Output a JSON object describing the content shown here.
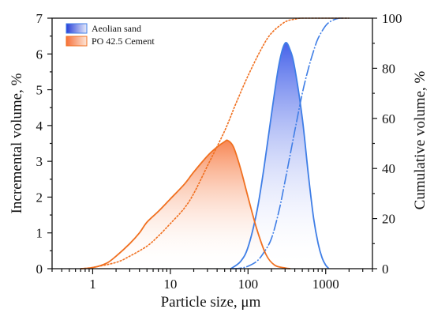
{
  "chart_data": {
    "type": "area",
    "x_scale": "log",
    "xlabel": "Particle size, μm",
    "ylabel": "Incremental volume, %",
    "y2label": "Cumulative volume, %",
    "xlim": [
      0.3,
      4000
    ],
    "ylim": [
      0,
      7
    ],
    "y2lim": [
      0,
      100
    ],
    "x_ticks": [
      1,
      10,
      100,
      1000
    ],
    "x_tick_labels": [
      "1",
      "10",
      "100",
      "1000"
    ],
    "y_ticks": [
      0,
      1,
      2,
      3,
      4,
      5,
      6,
      7
    ],
    "y_tick_labels": [
      "0",
      "1",
      "2",
      "3",
      "4",
      "5",
      "6",
      "7"
    ],
    "y2_ticks": [
      0,
      20,
      40,
      60,
      80,
      100
    ],
    "y2_tick_labels": [
      "0",
      "20",
      "40",
      "60",
      "80",
      "100"
    ],
    "grid": false,
    "legend": {
      "position": "top-left"
    },
    "series": [
      {
        "name": "Aeolian sand",
        "color": "#3f7ee6",
        "incremental": [
          [
            60,
            0
          ],
          [
            80,
            0.2
          ],
          [
            100,
            0.6
          ],
          [
            130,
            1.6
          ],
          [
            160,
            2.8
          ],
          [
            200,
            4.3
          ],
          [
            250,
            5.7
          ],
          [
            300,
            6.3
          ],
          [
            350,
            6.1
          ],
          [
            400,
            5.6
          ],
          [
            500,
            4.2
          ],
          [
            600,
            2.6
          ],
          [
            700,
            1.4
          ],
          [
            800,
            0.7
          ],
          [
            900,
            0.3
          ],
          [
            1000,
            0.1
          ],
          [
            1100,
            0
          ]
        ],
        "cumulative": [
          [
            60,
            0
          ],
          [
            80,
            0.2
          ],
          [
            100,
            1
          ],
          [
            130,
            3
          ],
          [
            160,
            6.5
          ],
          [
            200,
            12
          ],
          [
            250,
            23
          ],
          [
            300,
            35
          ],
          [
            400,
            55
          ],
          [
            500,
            70
          ],
          [
            600,
            80
          ],
          [
            700,
            87
          ],
          [
            800,
            92
          ],
          [
            1000,
            97
          ],
          [
            1200,
            99
          ],
          [
            1500,
            100
          ],
          [
            2000,
            100
          ]
        ]
      },
      {
        "name": "PO 42.5 Cement",
        "color": "#f07020",
        "incremental": [
          [
            0.7,
            0
          ],
          [
            1,
            0.03
          ],
          [
            1.5,
            0.15
          ],
          [
            2,
            0.35
          ],
          [
            3,
            0.7
          ],
          [
            4,
            1
          ],
          [
            5,
            1.3
          ],
          [
            7,
            1.6
          ],
          [
            10,
            1.95
          ],
          [
            15,
            2.35
          ],
          [
            20,
            2.7
          ],
          [
            30,
            3.15
          ],
          [
            40,
            3.4
          ],
          [
            50,
            3.55
          ],
          [
            55,
            3.58
          ],
          [
            65,
            3.4
          ],
          [
            80,
            2.8
          ],
          [
            100,
            2.0
          ],
          [
            130,
            1.1
          ],
          [
            170,
            0.4
          ],
          [
            220,
            0.1
          ],
          [
            300,
            0.02
          ],
          [
            350,
            0
          ]
        ],
        "cumulative": [
          [
            0.7,
            0
          ],
          [
            1,
            0.5
          ],
          [
            2,
            2.5
          ],
          [
            3,
            5
          ],
          [
            5,
            9
          ],
          [
            7,
            13
          ],
          [
            10,
            18
          ],
          [
            15,
            24
          ],
          [
            20,
            30
          ],
          [
            30,
            41
          ],
          [
            50,
            55
          ],
          [
            70,
            66
          ],
          [
            100,
            77
          ],
          [
            150,
            88
          ],
          [
            200,
            94
          ],
          [
            300,
            98.5
          ],
          [
            400,
            99.6
          ],
          [
            500,
            100
          ],
          [
            1000,
            100
          ],
          [
            2000,
            100
          ]
        ]
      }
    ]
  }
}
